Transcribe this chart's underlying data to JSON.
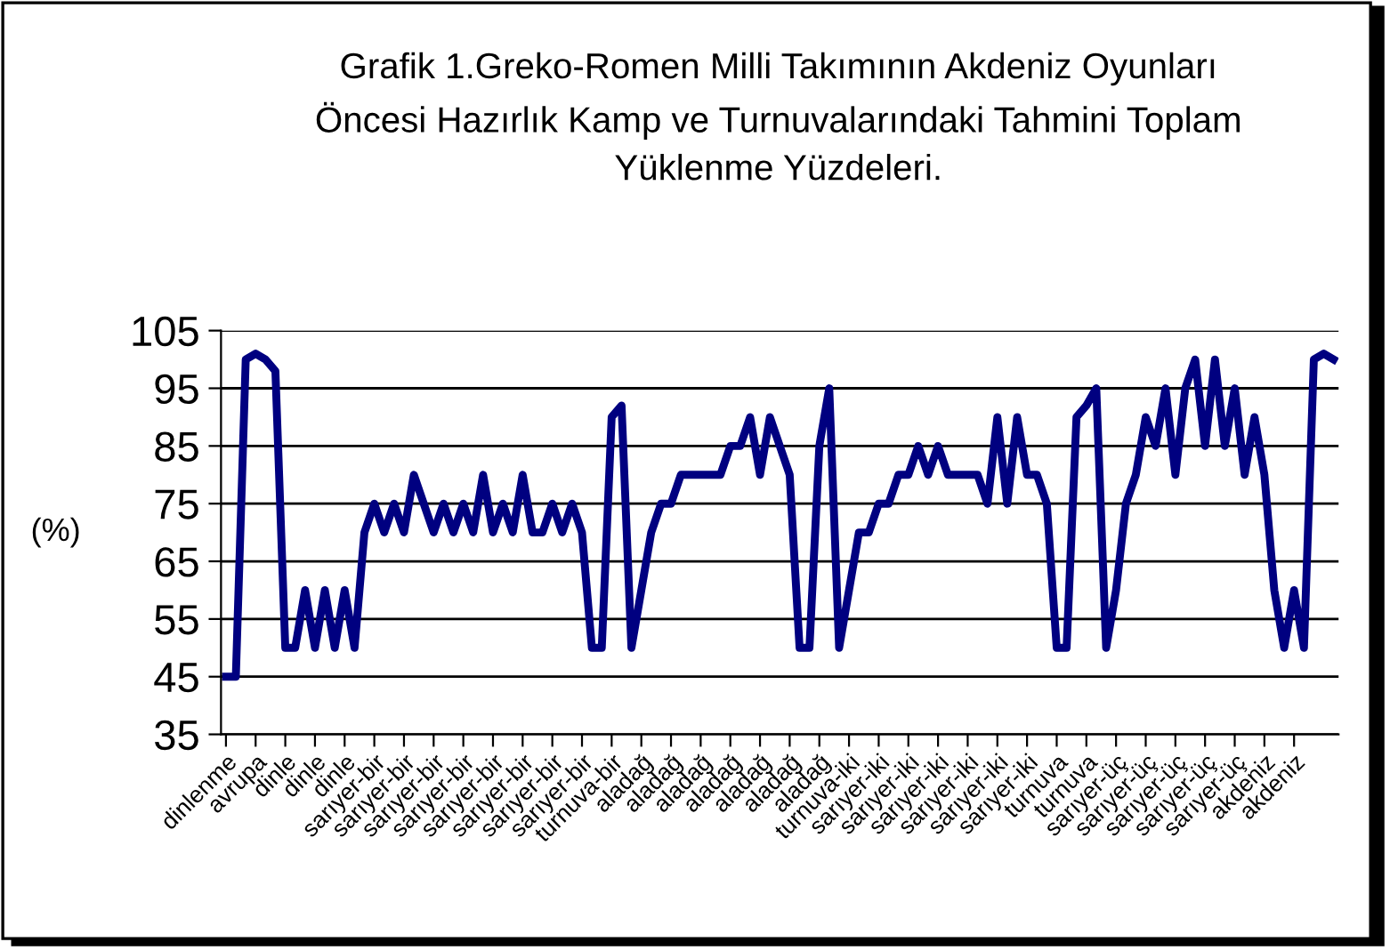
{
  "chart_data": {
    "type": "line",
    "title": "Grafik 1.Greko-Romen Milli Takımının Akdeniz Oyunları\nÖncesi Hazırlık Kamp ve Turnuvalarındaki Tahmini Toplam\nYüklenme Yüzdeleri.",
    "ylabel": "(%)",
    "categories": [
      "dinlenme",
      null,
      null,
      "avrupa",
      null,
      null,
      "dinle",
      null,
      null,
      "dinle",
      null,
      null,
      "dinle",
      null,
      null,
      "sarıyer-bir",
      null,
      null,
      "sarıyer-bir",
      null,
      null,
      "sarıyer-bir",
      null,
      null,
      "sarıyer-bir",
      null,
      null,
      "sarıyer-bir",
      null,
      null,
      "sarıyer-bir",
      null,
      null,
      "sarıyer-bir",
      null,
      null,
      "sarıyer-bir",
      null,
      null,
      "turnuva-bir",
      null,
      null,
      "aladağ",
      null,
      null,
      "aladağ",
      null,
      null,
      "aladağ",
      null,
      null,
      "aladağ",
      null,
      null,
      "aladağ",
      null,
      null,
      "aladağ",
      null,
      null,
      "aladağ",
      null,
      null,
      "turnuva-iki",
      null,
      null,
      "sarıyer-iki",
      null,
      null,
      "sarıyer-iki",
      null,
      null,
      "sarıyer-iki",
      null,
      null,
      "sarıyer-iki",
      null,
      null,
      "sarıyer-iki",
      null,
      null,
      "sarıyer-iki",
      null,
      null,
      "turnuva",
      null,
      null,
      "turnuva",
      null,
      null,
      "sarıyer-üç",
      null,
      null,
      "sarıyer-üç",
      null,
      null,
      "sarıyer-üç",
      null,
      null,
      "sarıyer-üç",
      null,
      null,
      "sarıyer-üç",
      null,
      null,
      "akdeniz",
      null,
      null,
      "akdeniz",
      null,
      null,
      null,
      null
    ],
    "series": [
      {
        "color": "#000080",
        "values": [
          45,
          45,
          100,
          101,
          100,
          98,
          50,
          50,
          60,
          50,
          60,
          50,
          60,
          50,
          70,
          75,
          70,
          75,
          70,
          80,
          75,
          70,
          75,
          70,
          75,
          70,
          80,
          70,
          75,
          70,
          80,
          70,
          70,
          75,
          70,
          75,
          70,
          50,
          50,
          90,
          92,
          50,
          60,
          70,
          75,
          75,
          80,
          80,
          80,
          80,
          80,
          85,
          85,
          90,
          80,
          90,
          85,
          80,
          50,
          50,
          85,
          95,
          50,
          60,
          70,
          70,
          75,
          75,
          80,
          80,
          85,
          80,
          85,
          80,
          80,
          80,
          80,
          75,
          90,
          75,
          90,
          80,
          80,
          75,
          50,
          50,
          90,
          92,
          95,
          50,
          60,
          75,
          80,
          90,
          85,
          95,
          80,
          95,
          100,
          85,
          100,
          85,
          95,
          80,
          90,
          80,
          60,
          50,
          60,
          50,
          100,
          101,
          100
        ]
      }
    ],
    "ylim": [
      35,
      105
    ],
    "yticks": [
      35,
      45,
      55,
      65,
      75,
      85,
      95,
      105
    ],
    "grid": "y",
    "marker": "none",
    "line_style": "solid"
  }
}
